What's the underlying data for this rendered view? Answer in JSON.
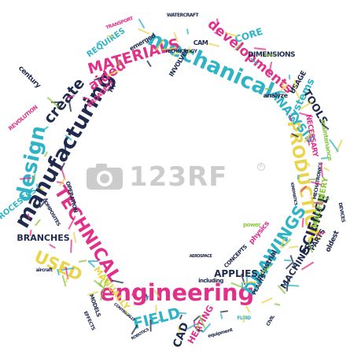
{
  "colors": {
    "navy": "#1f2a4d",
    "teal": "#2fb3c7",
    "magenta": "#e0308a",
    "yellow": "#e9d44a",
    "green": "#8cc63f",
    "grey": "#9a9a9a"
  },
  "watermark": {
    "text": "123RF",
    "icon": "camera-logo-icon"
  },
  "words": [
    {
      "name": "mechanical",
      "text": "mechanical",
      "color": "teal"
    },
    {
      "name": "engineering",
      "text": "engineering",
      "color": "magenta"
    },
    {
      "name": "manufacturing",
      "text": "manufacturing",
      "color": "navy"
    },
    {
      "name": "design",
      "text": "design",
      "color": "teal"
    },
    {
      "name": "technical",
      "text": "TECHNICAL",
      "color": "magenta"
    },
    {
      "name": "production",
      "text": "PRODUCTION",
      "color": "yellow"
    },
    {
      "name": "drawings",
      "text": "DRAWINGS",
      "color": "teal"
    },
    {
      "name": "materials",
      "text": "MATERIALS",
      "color": "magenta"
    },
    {
      "name": "developments",
      "text": "developments",
      "color": "magenta"
    },
    {
      "name": "science",
      "text": "SCIENCE",
      "color": "navy"
    },
    {
      "name": "analysis",
      "text": "ANALYSIS",
      "color": "teal"
    },
    {
      "name": "systems",
      "text": "systems",
      "color": "teal"
    },
    {
      "name": "used",
      "text": "USED",
      "color": "yellow"
    },
    {
      "name": "field",
      "text": "FIELD",
      "color": "teal"
    },
    {
      "name": "create",
      "text": "create",
      "color": "navy"
    },
    {
      "name": "aided",
      "text": "aided",
      "color": "magenta"
    },
    {
      "name": "branches",
      "text": "BRANCHES",
      "color": "navy"
    },
    {
      "name": "processes",
      "text": "PROCESSES",
      "color": "teal"
    },
    {
      "name": "manually",
      "text": "MANUALLY",
      "color": "yellow"
    },
    {
      "name": "requires",
      "text": "REQUIRES",
      "color": "teal"
    },
    {
      "name": "core",
      "text": "CORE",
      "color": "teal"
    },
    {
      "name": "dimensions",
      "text": "DIMENSIONS",
      "color": "navy"
    },
    {
      "name": "tools",
      "text": "TOOLS",
      "color": "navy"
    },
    {
      "name": "applies",
      "text": "APPLIES",
      "color": "navy"
    },
    {
      "name": "machines",
      "text": "MACHINES",
      "color": "navy"
    },
    {
      "name": "industrial",
      "text": "industrial",
      "color": "navy"
    },
    {
      "name": "machinery",
      "text": "MACHINERY",
      "color": "green"
    },
    {
      "name": "parts",
      "text": "PARTS",
      "color": "navy"
    },
    {
      "name": "cad",
      "text": "CAD",
      "color": "navy"
    },
    {
      "name": "heating",
      "text": "HEATING",
      "color": "magenta"
    },
    {
      "name": "century",
      "text": "century",
      "color": "navy"
    },
    {
      "name": "physics",
      "text": "physics",
      "color": "magenta"
    },
    {
      "name": "concepts",
      "text": "CONCEPTS",
      "color": "navy"
    },
    {
      "name": "including",
      "text": "including",
      "color": "navy"
    },
    {
      "name": "power",
      "text": "power",
      "color": "green"
    },
    {
      "name": "usage",
      "text": "USAGE",
      "color": "navy"
    },
    {
      "name": "analyze",
      "text": "analyze",
      "color": "navy"
    },
    {
      "name": "necessary",
      "text": "NECESSARY",
      "color": "magenta"
    },
    {
      "name": "maintenance",
      "text": "maintenance",
      "color": "green"
    },
    {
      "name": "operation",
      "text": "OPERATION",
      "color": "navy"
    },
    {
      "name": "broadest",
      "text": "BROADEST",
      "color": "magenta"
    },
    {
      "name": "cam",
      "text": "CAM",
      "color": "navy"
    },
    {
      "name": "involves",
      "text": "INVOLVES",
      "color": "navy"
    },
    {
      "name": "emerged",
      "text": "emerged",
      "color": "navy"
    },
    {
      "name": "oldest",
      "text": "oldest",
      "color": "navy"
    },
    {
      "name": "aircraft",
      "text": "aircraft",
      "color": "navy"
    },
    {
      "name": "models",
      "text": "MODELS",
      "color": "navy"
    },
    {
      "name": "revolution",
      "text": "REVOLUTION",
      "color": "magenta"
    },
    {
      "name": "devices",
      "text": "DEVICES",
      "color": "navy"
    },
    {
      "name": "plants",
      "text": "PLANTS",
      "color": "navy"
    },
    {
      "name": "equipment",
      "text": "equipment",
      "color": "navy"
    },
    {
      "name": "th",
      "text": "TH",
      "color": "navy"
    },
    {
      "name": "technology",
      "text": "TECHNOLOGY",
      "color": "navy"
    },
    {
      "name": "transport",
      "text": "TRANSPORT",
      "color": "magenta"
    },
    {
      "name": "watercraft",
      "text": "WATERCRAFT",
      "color": "navy"
    },
    {
      "name": "robotics",
      "text": "ROBOTICS",
      "color": "navy"
    },
    {
      "name": "kinematics",
      "text": "KINEMATICS",
      "color": "navy"
    },
    {
      "name": "civil",
      "text": "CIVIL",
      "color": "navy"
    },
    {
      "name": "effects",
      "text": "EFFECTS",
      "color": "navy"
    },
    {
      "name": "fluid",
      "text": "FLUID",
      "color": "teal"
    },
    {
      "name": "composites",
      "text": "COMPOSITES",
      "color": "navy"
    },
    {
      "name": "mechatronics",
      "text": "MECHATRONICS",
      "color": "navy"
    },
    {
      "name": "continually",
      "text": "CONTINUALLY",
      "color": "navy"
    },
    {
      "name": "aerospace",
      "text": "AEROSPACE",
      "color": "navy"
    }
  ]
}
